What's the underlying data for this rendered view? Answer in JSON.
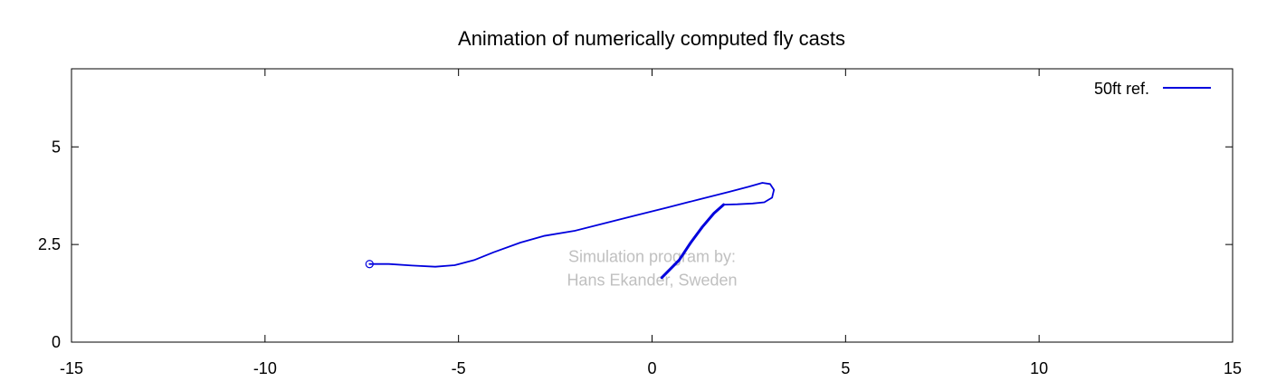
{
  "chart_data": {
    "type": "line",
    "title": "Animation of numerically computed fly casts",
    "xlabel": "",
    "ylabel": "",
    "xlim": [
      -15,
      15
    ],
    "ylim": [
      0,
      7
    ],
    "xticks": [
      -15,
      -10,
      -5,
      0,
      5,
      10,
      15
    ],
    "xtick_labels": [
      "-15",
      "-10",
      "-5",
      "0",
      "5",
      "10",
      "15"
    ],
    "yticks": [
      0,
      2.5,
      5
    ],
    "ytick_labels": [
      "0",
      "2.5",
      "5"
    ],
    "grid": false,
    "legend_position": "top-right",
    "series": [
      {
        "name": "50ft ref.",
        "color": "#0000dd",
        "parts": [
          {
            "role": "fly-line",
            "width": "thin",
            "points": [
              [
                -7.3,
                2.0
              ],
              [
                -6.8,
                2.0
              ],
              [
                -6.2,
                1.96
              ],
              [
                -5.6,
                1.93
              ],
              [
                -5.1,
                1.97
              ],
              [
                -4.6,
                2.1
              ],
              [
                -4.1,
                2.3
              ],
              [
                -3.4,
                2.55
              ],
              [
                -2.8,
                2.72
              ],
              [
                -2.0,
                2.85
              ],
              [
                -1.2,
                3.05
              ],
              [
                -0.4,
                3.25
              ],
              [
                0.4,
                3.45
              ],
              [
                1.2,
                3.65
              ],
              [
                2.0,
                3.85
              ],
              [
                2.5,
                3.98
              ],
              [
                2.85,
                4.08
              ],
              [
                3.05,
                4.05
              ],
              [
                3.15,
                3.9
              ],
              [
                3.1,
                3.7
              ],
              [
                2.9,
                3.58
              ],
              [
                2.6,
                3.55
              ],
              [
                2.2,
                3.53
              ],
              [
                1.85,
                3.52
              ]
            ]
          },
          {
            "role": "rod",
            "width": "thick",
            "points": [
              [
                1.85,
                3.52
              ],
              [
                1.6,
                3.3
              ],
              [
                1.3,
                2.95
              ],
              [
                1.0,
                2.55
              ],
              [
                0.7,
                2.1
              ],
              [
                0.25,
                1.65
              ]
            ]
          }
        ],
        "marker": {
          "shape": "circle",
          "x": -7.3,
          "y": 2.0
        }
      }
    ],
    "annotations": [
      {
        "text": "Simulation program by:",
        "x": 0,
        "y": 2.05
      },
      {
        "text": "Hans Ekander, Sweden",
        "x": 0,
        "y": 1.45
      }
    ]
  }
}
